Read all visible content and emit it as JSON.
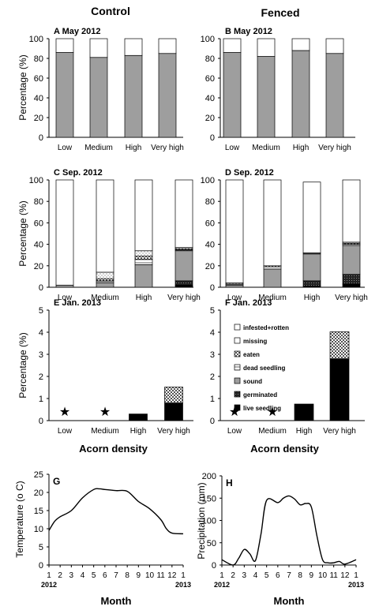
{
  "headings": {
    "control": "Control",
    "fenced": "Fenced"
  },
  "legend": [
    {
      "label": "infested+rotten",
      "fill": "#ffffff"
    },
    {
      "label": "missing",
      "fill": "#ffffff"
    },
    {
      "label": "eaten",
      "fill": "pattern-eaten"
    },
    {
      "label": "dead seedling",
      "fill": "pattern-dead"
    },
    {
      "label": "sound",
      "fill": "#9e9e9e"
    },
    {
      "label": "germinated",
      "fill": "pattern-germ"
    },
    {
      "label": "live seedling",
      "fill": "#000000"
    }
  ],
  "chart_data": [
    {
      "id": "A",
      "type": "bar",
      "stacked": true,
      "title": "A  May 2012",
      "categories": [
        "Low",
        "Medium",
        "High",
        "Very high"
      ],
      "ylabel": "Percentage (%)",
      "ylim": [
        0,
        100
      ],
      "yticks": [
        0,
        20,
        40,
        60,
        80,
        100
      ],
      "series": [
        {
          "key": "sound",
          "values": [
            86,
            81,
            83,
            85
          ]
        },
        {
          "key": "infested",
          "values": [
            14,
            19,
            17,
            15
          ]
        }
      ]
    },
    {
      "id": "B",
      "type": "bar",
      "stacked": true,
      "title": "B  May 2012",
      "categories": [
        "Low",
        "Medium",
        "High",
        "Very high"
      ],
      "ylabel": "",
      "ylim": [
        0,
        100
      ],
      "yticks": [
        0,
        20,
        40,
        60,
        80,
        100
      ],
      "series": [
        {
          "key": "sound",
          "values": [
            86,
            82,
            88,
            85
          ]
        },
        {
          "key": "infested",
          "values": [
            14,
            18,
            12,
            15
          ]
        }
      ]
    },
    {
      "id": "C",
      "type": "bar",
      "stacked": true,
      "title": "C  Sep. 2012",
      "categories": [
        "Low",
        "Medium",
        "High",
        "Very high"
      ],
      "ylabel": "Percentage (%)",
      "ylim": [
        0,
        100
      ],
      "yticks": [
        0,
        20,
        40,
        60,
        80,
        100
      ],
      "series": [
        {
          "key": "live",
          "values": [
            0,
            0,
            0,
            2
          ]
        },
        {
          "key": "germinated",
          "values": [
            0,
            0,
            0,
            4
          ]
        },
        {
          "key": "sound",
          "values": [
            2,
            4,
            21,
            28
          ]
        },
        {
          "key": "dead",
          "values": [
            0,
            2,
            5,
            1
          ]
        },
        {
          "key": "eaten",
          "values": [
            0,
            2,
            3,
            1
          ]
        },
        {
          "key": "missing",
          "values": [
            0,
            6,
            5,
            1
          ]
        },
        {
          "key": "infested",
          "values": [
            98,
            86,
            66,
            63
          ]
        }
      ]
    },
    {
      "id": "D",
      "type": "bar",
      "stacked": true,
      "title": "D  Sep. 2012",
      "categories": [
        "Low",
        "Medium",
        "High",
        "Very high"
      ],
      "ylabel": "",
      "ylim": [
        0,
        100
      ],
      "yticks": [
        0,
        20,
        40,
        60,
        80,
        100
      ],
      "series": [
        {
          "key": "live",
          "values": [
            0,
            0,
            1,
            3
          ]
        },
        {
          "key": "germinated",
          "values": [
            0,
            0,
            5,
            9
          ]
        },
        {
          "key": "sound",
          "values": [
            2,
            17,
            25,
            27
          ]
        },
        {
          "key": "dead",
          "values": [
            1,
            2,
            1,
            1
          ]
        },
        {
          "key": "eaten",
          "values": [
            0,
            1,
            0,
            1
          ]
        },
        {
          "key": "missing",
          "values": [
            1,
            0,
            0,
            1
          ]
        },
        {
          "key": "infested",
          "values": [
            96,
            80,
            66,
            58
          ]
        }
      ]
    },
    {
      "id": "E",
      "type": "bar",
      "stacked": true,
      "title": "E  Jan. 2013",
      "categories": [
        "Low",
        "Medium",
        "High",
        "Very high"
      ],
      "ylabel": "Percentage (%)",
      "xlabel": "Acorn density",
      "ylim": [
        0,
        5
      ],
      "yticks": [
        0,
        1,
        2,
        3,
        4,
        5
      ],
      "markers": [
        "star",
        "star",
        "",
        ""
      ],
      "series": [
        {
          "key": "live",
          "values": [
            0,
            0,
            0.3,
            0.8
          ]
        },
        {
          "key": "eaten",
          "values": [
            0,
            0,
            0,
            0.72
          ]
        }
      ]
    },
    {
      "id": "F",
      "type": "bar",
      "stacked": true,
      "title": "F  Jan. 2013",
      "categories": [
        "Low",
        "Medium",
        "High",
        "Very high"
      ],
      "ylabel": "",
      "xlabel": "Acorn density",
      "ylim": [
        0,
        5
      ],
      "yticks": [
        0,
        1,
        2,
        3,
        4,
        5
      ],
      "markers": [
        "star",
        "star",
        "",
        ""
      ],
      "series": [
        {
          "key": "live",
          "values": [
            0,
            0,
            0.75,
            2.8
          ]
        },
        {
          "key": "eaten",
          "values": [
            0,
            0,
            0,
            1.22
          ]
        }
      ]
    },
    {
      "id": "G",
      "type": "line",
      "title": "G",
      "ylabel": "Temperature (o C)",
      "xlabel": "Month",
      "ylim": [
        0,
        25
      ],
      "yticks": [
        0,
        5,
        10,
        15,
        20,
        25
      ],
      "xticks": [
        "1",
        "2",
        "3",
        "4",
        "5",
        "6",
        "7",
        "8",
        "9",
        "10",
        "11",
        "12",
        "1"
      ],
      "xsub": {
        "first": "2012",
        "last": "2013"
      },
      "x": [
        1,
        1.5,
        2,
        3,
        4,
        5,
        5.5,
        6,
        7,
        8,
        9,
        10,
        11,
        11.5,
        12,
        13
      ],
      "y": [
        9.5,
        12,
        13.3,
        15,
        18.5,
        20.8,
        21,
        20.8,
        20.5,
        20.3,
        17.5,
        15.5,
        12.5,
        10,
        8.8,
        8.6
      ]
    },
    {
      "id": "H",
      "type": "line",
      "title": "H",
      "ylabel": "Precipitation (mm)",
      "xlabel": "Month",
      "ylim": [
        0,
        200
      ],
      "yticks": [
        0,
        50,
        100,
        150,
        200
      ],
      "xticks": [
        "1",
        "2",
        "3",
        "4",
        "5",
        "6",
        "7",
        "8",
        "9",
        "10",
        "11",
        "12",
        "1"
      ],
      "xsub": {
        "first": "2012",
        "last": "2013"
      },
      "x": [
        1,
        2,
        2.5,
        3,
        3.5,
        4,
        4.5,
        5,
        6,
        6.5,
        7,
        7.5,
        8,
        8.5,
        9,
        9.5,
        10,
        10.5,
        11,
        11.5,
        12,
        13
      ],
      "y": [
        12,
        0,
        15,
        35,
        25,
        10,
        70,
        145,
        140,
        150,
        155,
        148,
        135,
        138,
        130,
        65,
        12,
        5,
        5,
        8,
        2,
        12
      ]
    }
  ]
}
